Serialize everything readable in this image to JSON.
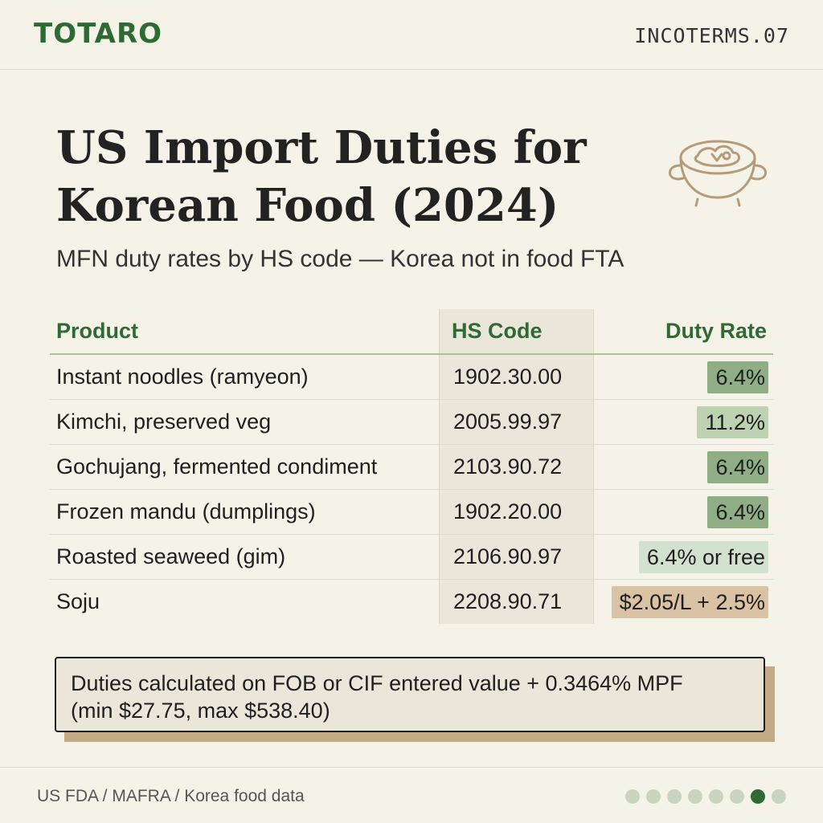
{
  "header": {
    "brand": "TOTARO",
    "series": "INCOTERMS.07"
  },
  "title": "US Import Duties for Korean Food (2024)",
  "subtitle": "MFN duty rates by HS code — Korea not in food FTA",
  "icon": "stone-pot-icon",
  "table": {
    "columns": [
      "Product",
      "HS Code",
      "Duty Rate"
    ],
    "rows": [
      {
        "product": "Instant noodles (ramyeon)",
        "hs": "1902.30.00",
        "duty": "6.4%",
        "color": "#8fae86"
      },
      {
        "product": "Kimchi, preserved veg",
        "hs": "2005.99.97",
        "duty": "11.2%",
        "color": "#bcd2b0"
      },
      {
        "product": "Gochujang, fermented condiment",
        "hs": "2103.90.72",
        "duty": "6.4%",
        "color": "#8fae86"
      },
      {
        "product": "Frozen mandu (dumplings)",
        "hs": "1902.20.00",
        "duty": "6.4%",
        "color": "#8fae86"
      },
      {
        "product": "Roasted seaweed (gim)",
        "hs": "2106.90.97",
        "duty": "6.4% or free",
        "color": "#d3e2ce"
      },
      {
        "product": "Soju",
        "hs": "2208.90.71",
        "duty": "$2.05/L + 2.5%",
        "color": "#d9c3a4"
      }
    ]
  },
  "note": {
    "line1": "Duties calculated on FOB or CIF entered value + 0.3464% MPF",
    "line2": "(min $27.75, max $538.40)"
  },
  "footer": {
    "source": "US FDA / MAFRA / Korea food data",
    "page_count": 8,
    "active_page": 7
  }
}
